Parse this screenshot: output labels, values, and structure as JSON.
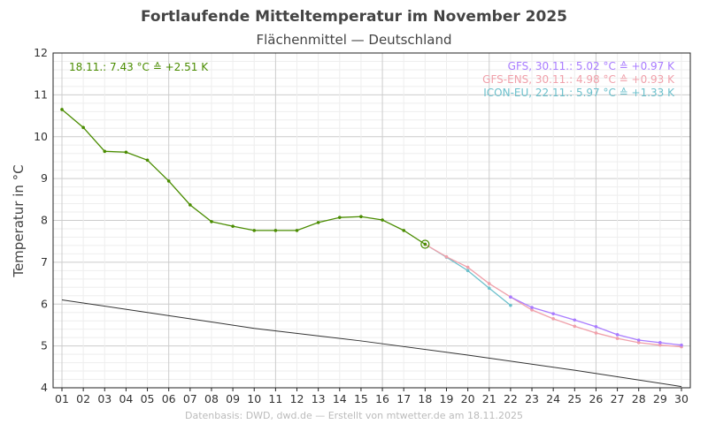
{
  "chart_data": {
    "type": "line",
    "title": "Fortlaufende Mitteltemperatur im November 2025",
    "subtitle": "Flächenmittel — Deutschland",
    "ylabel": "Temperatur in °C",
    "xlabel": "",
    "ylim": [
      4,
      12
    ],
    "xlim": [
      1,
      30
    ],
    "grid": true,
    "x_ticks": [
      "01",
      "02",
      "03",
      "04",
      "05",
      "06",
      "07",
      "08",
      "09",
      "10",
      "11",
      "12",
      "13",
      "14",
      "15",
      "16",
      "17",
      "18",
      "19",
      "20",
      "21",
      "22",
      "23",
      "24",
      "25",
      "26",
      "27",
      "28",
      "29",
      "30"
    ],
    "y_ticks": [
      "4",
      "5",
      "6",
      "7",
      "8",
      "9",
      "10",
      "11",
      "12"
    ],
    "series": [
      {
        "key": "observed",
        "color": "#4a8c00",
        "x": [
          1,
          2,
          3,
          4,
          5,
          6,
          7,
          8,
          9,
          10,
          11,
          12,
          13,
          14,
          15,
          16,
          17,
          18
        ],
        "y": [
          10.65,
          10.22,
          9.65,
          9.63,
          9.44,
          8.94,
          8.37,
          7.97,
          7.86,
          7.76,
          7.76,
          7.76,
          7.95,
          8.07,
          8.09,
          8.01,
          7.76,
          7.43
        ]
      },
      {
        "key": "icon",
        "color": "#6cc0cc",
        "x": [
          18,
          19,
          20,
          21,
          22
        ],
        "y": [
          7.43,
          7.12,
          6.8,
          6.38,
          5.97
        ]
      },
      {
        "key": "gfs-ens",
        "color": "#f0a0aa",
        "x": [
          18,
          19,
          20,
          21,
          22,
          23,
          24,
          25,
          26,
          27,
          28,
          29,
          30
        ],
        "y": [
          7.43,
          7.13,
          6.88,
          6.49,
          6.17,
          5.86,
          5.65,
          5.47,
          5.31,
          5.18,
          5.08,
          5.02,
          4.98
        ]
      },
      {
        "key": "gfs",
        "color": "#a97cff",
        "x": [
          22,
          23,
          24,
          25,
          26,
          27,
          28,
          29,
          30
        ],
        "y": [
          6.17,
          5.92,
          5.77,
          5.62,
          5.46,
          5.27,
          5.14,
          5.08,
          5.02
        ]
      },
      {
        "key": "climate",
        "color": "#333333",
        "x": [
          1,
          5,
          10,
          15,
          20,
          25,
          30
        ],
        "y": [
          6.1,
          5.8,
          5.42,
          5.12,
          4.78,
          4.42,
          4.03
        ]
      }
    ],
    "annotations": {
      "observed": "18.11.:  7.43 °C ≙ +2.51 K",
      "gfs": "GFS, 30.11.:  5.02 °C ≙ +0.97 K",
      "gfs_ens": "GFS-ENS, 30.11.:  4.98 °C ≙ +0.93 K",
      "icon": "ICON-EU, 22.11.:  5.97 °C ≙ +1.33 K"
    },
    "footer": "Datenbasis: DWD, dwd.de — Erstellt von mtwetter.de am 18.11.2025"
  }
}
